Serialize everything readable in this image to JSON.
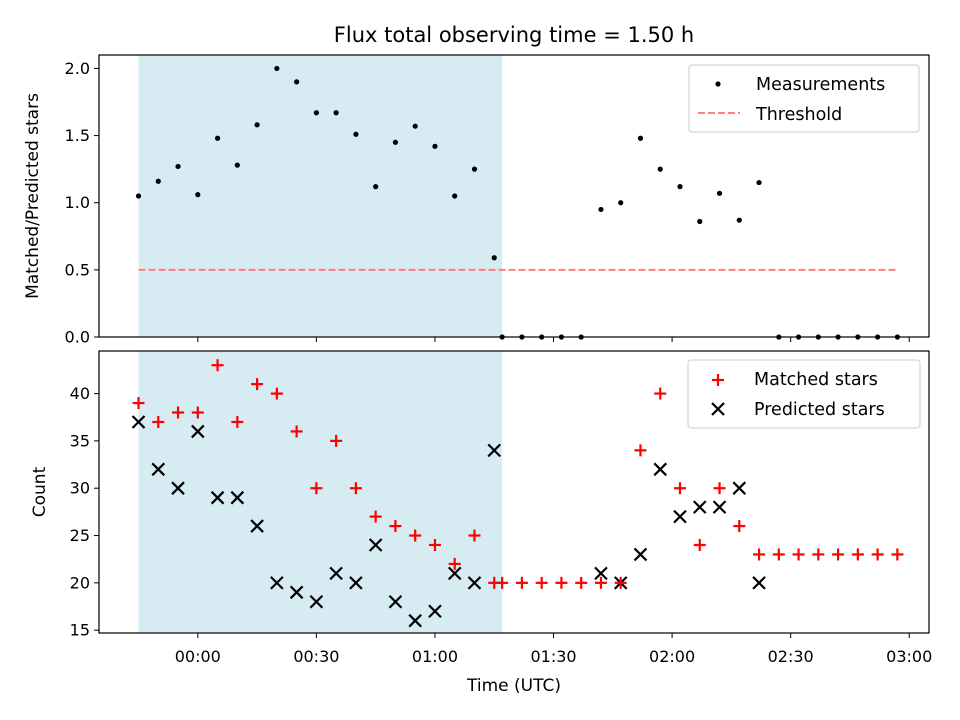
{
  "chart_data": [
    {
      "type": "scatter",
      "title": "Flux total observing time = 1.50 h",
      "xlabel": "",
      "ylabel": "Matched/Predicted stars",
      "ylim": [
        0,
        2.1
      ],
      "yticks": [
        "0.0",
        "0.5",
        "1.0",
        "1.5",
        "2.0"
      ],
      "yticks_values": [
        0,
        0.5,
        1.0,
        1.5,
        2.0
      ],
      "grid": false,
      "legend_position": "top-right",
      "shaded_region": {
        "x_start_min": -15,
        "x_end_min": 77,
        "color": "#add8e6"
      },
      "series": [
        {
          "name": "Measurements",
          "marker": "dot",
          "color": "#000000",
          "x_minutes": [
            -15,
            -10,
            -5,
            0,
            5,
            10,
            15,
            20,
            25,
            30,
            35,
            40,
            45,
            50,
            55,
            60,
            65,
            70,
            75,
            77,
            82,
            87,
            92,
            97,
            102,
            107,
            112,
            117,
            122,
            127,
            132,
            137,
            142,
            147,
            152,
            157,
            162,
            167,
            172,
            177
          ],
          "values": [
            1.05,
            1.16,
            1.27,
            1.06,
            1.48,
            1.28,
            1.58,
            2.0,
            1.9,
            1.67,
            1.67,
            1.51,
            1.12,
            1.45,
            1.57,
            1.42,
            1.05,
            1.25,
            0.59,
            0,
            0,
            0,
            0,
            0,
            0.95,
            1.0,
            1.48,
            1.25,
            1.12,
            0.86,
            1.07,
            0.87,
            1.15,
            0,
            0,
            0,
            0,
            0,
            0,
            0
          ]
        },
        {
          "name": "Threshold",
          "style": "dashed",
          "color": "#ff7f7f",
          "x_minutes": [
            -15,
            177
          ],
          "values": [
            0.5,
            0.5
          ]
        }
      ]
    },
    {
      "type": "scatter",
      "title": "",
      "xlabel": "Time (UTC)",
      "ylabel": "Count",
      "ylim": [
        14.7,
        44.5
      ],
      "yticks": [
        "15",
        "20",
        "25",
        "30",
        "35",
        "40"
      ],
      "yticks_values": [
        15,
        20,
        25,
        30,
        35,
        40
      ],
      "xticks": [
        "00:00",
        "00:30",
        "01:00",
        "01:30",
        "02:00",
        "02:30",
        "03:00"
      ],
      "xticks_minutes": [
        0,
        30,
        60,
        90,
        120,
        150,
        180
      ],
      "xlim_minutes": [
        -25,
        185
      ],
      "grid": false,
      "legend_position": "top-right",
      "shaded_region": {
        "x_start_min": -15,
        "x_end_min": 77,
        "color": "#add8e6"
      },
      "series": [
        {
          "name": "Matched stars",
          "marker": "plus",
          "color": "#ff0000",
          "x_minutes": [
            -15,
            -10,
            -5,
            0,
            5,
            10,
            15,
            20,
            25,
            30,
            35,
            40,
            45,
            50,
            55,
            60,
            65,
            70,
            75,
            77,
            82,
            87,
            92,
            97,
            102,
            107,
            112,
            117,
            122,
            127,
            132,
            137,
            142,
            147,
            152,
            157,
            162,
            167,
            172,
            177
          ],
          "values": [
            39,
            37,
            38,
            38,
            43,
            37,
            41,
            40,
            36,
            30,
            35,
            30,
            27,
            26,
            25,
            24,
            22,
            25,
            20,
            20,
            20,
            20,
            20,
            20,
            20,
            20,
            34,
            40,
            30,
            24,
            30,
            26,
            23,
            23,
            23,
            23,
            23,
            23,
            23,
            23
          ]
        },
        {
          "name": "Predicted stars",
          "marker": "x",
          "color": "#000000",
          "x_minutes": [
            -15,
            -10,
            -5,
            0,
            5,
            10,
            15,
            20,
            25,
            30,
            35,
            40,
            45,
            50,
            55,
            60,
            65,
            70,
            75,
            102,
            107,
            112,
            117,
            122,
            127,
            132,
            137,
            142
          ],
          "values": [
            37,
            32,
            30,
            36,
            29,
            29,
            26,
            20,
            19,
            18,
            21,
            20,
            24,
            18,
            16,
            17,
            21,
            20,
            34,
            21,
            20,
            23,
            32,
            27,
            28,
            28,
            30,
            20
          ]
        }
      ]
    }
  ]
}
